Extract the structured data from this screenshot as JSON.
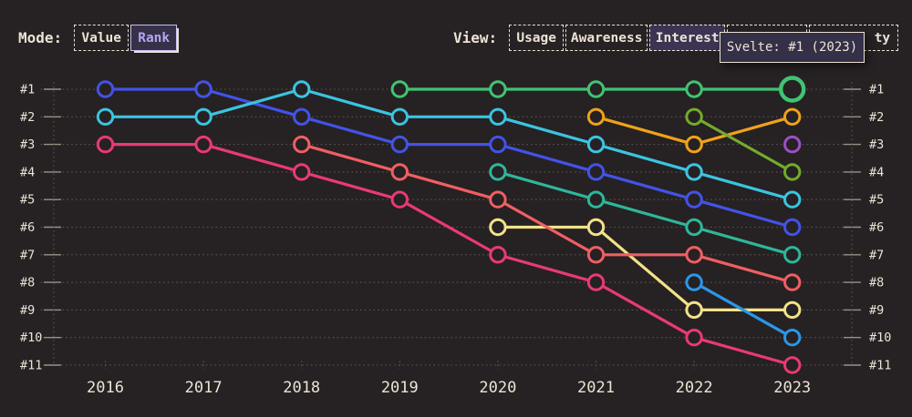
{
  "controls": {
    "mode": {
      "label": "Mode:",
      "options": [
        {
          "id": "value",
          "label": "Value",
          "selected": false
        },
        {
          "id": "rank",
          "label": "Rank",
          "selected": true
        }
      ]
    },
    "view": {
      "label": "View:",
      "options": [
        {
          "id": "usage",
          "label": "Usage",
          "selected": false
        },
        {
          "id": "awareness",
          "label": "Awareness",
          "selected": false
        },
        {
          "id": "interest",
          "label": "Interest",
          "selected": true
        },
        {
          "id": "hidden",
          "label": "",
          "selected": false
        },
        {
          "id": "partial",
          "label": "ty",
          "selected": false
        }
      ]
    }
  },
  "tooltip": {
    "text": "Svelte: #1 (2023)",
    "series": "Svelte",
    "rank": "#1",
    "year": 2023
  },
  "chart_data": {
    "type": "line",
    "title": "",
    "x": [
      2016,
      2017,
      2018,
      2019,
      2020,
      2021,
      2022,
      2023
    ],
    "y_rank_labels": [
      "#1",
      "#2",
      "#3",
      "#4",
      "#5",
      "#6",
      "#7",
      "#8",
      "#9",
      "#10",
      "#11"
    ],
    "ylim": [
      1,
      11
    ],
    "y_inverted": true,
    "grid": "dotted-horizontal",
    "legend": "none",
    "series": [
      {
        "id": "indigo",
        "color": "#4353e6",
        "ranks": [
          1,
          1,
          2,
          3,
          3,
          4,
          5,
          6
        ]
      },
      {
        "id": "cyan",
        "color": "#3bc4e0",
        "ranks": [
          2,
          2,
          1,
          2,
          2,
          3,
          4,
          5
        ]
      },
      {
        "id": "pink",
        "color": "#e93a72",
        "ranks": [
          3,
          3,
          4,
          5,
          7,
          8,
          10,
          11
        ]
      },
      {
        "id": "teal",
        "color": "#2fb69a",
        "ranks": [
          null,
          null,
          null,
          null,
          4,
          5,
          6,
          7
        ]
      },
      {
        "id": "yellow",
        "color": "#f2e288",
        "ranks": [
          null,
          null,
          null,
          null,
          6,
          6,
          9,
          9
        ]
      },
      {
        "id": "salmon",
        "color": "#ef5f63",
        "ranks": [
          null,
          null,
          3,
          4,
          5,
          7,
          7,
          8
        ]
      },
      {
        "id": "orange",
        "color": "#f0a21a",
        "ranks": [
          null,
          null,
          null,
          null,
          null,
          2,
          3,
          2
        ]
      },
      {
        "id": "lime",
        "color": "#73ab2d",
        "ranks": [
          null,
          null,
          null,
          null,
          null,
          null,
          2,
          4
        ]
      },
      {
        "id": "lightblue",
        "color": "#2b97e8",
        "ranks": [
          null,
          null,
          null,
          null,
          null,
          null,
          8,
          10
        ]
      },
      {
        "id": "purple",
        "color": "#9c50c5",
        "ranks": [
          null,
          null,
          null,
          null,
          null,
          null,
          null,
          3
        ]
      },
      {
        "id": "svelte",
        "name": "Svelte",
        "color": "#40c473",
        "ranks": [
          null,
          null,
          null,
          1,
          1,
          1,
          1,
          1
        ],
        "highlight_point": {
          "year": 2023,
          "rank": 1
        }
      }
    ]
  },
  "colors": {
    "background": "#262123",
    "text": "#ece3d5",
    "grid_dots": "#5c5650",
    "axis_ticks": "#9a9187",
    "selected_view_bg": "#3b3453",
    "rank_button_bg": "#363049",
    "rank_button_border": "#c9bdf2",
    "rank_button_text": "#b5a5f0",
    "tooltip_bg": "#343048"
  }
}
